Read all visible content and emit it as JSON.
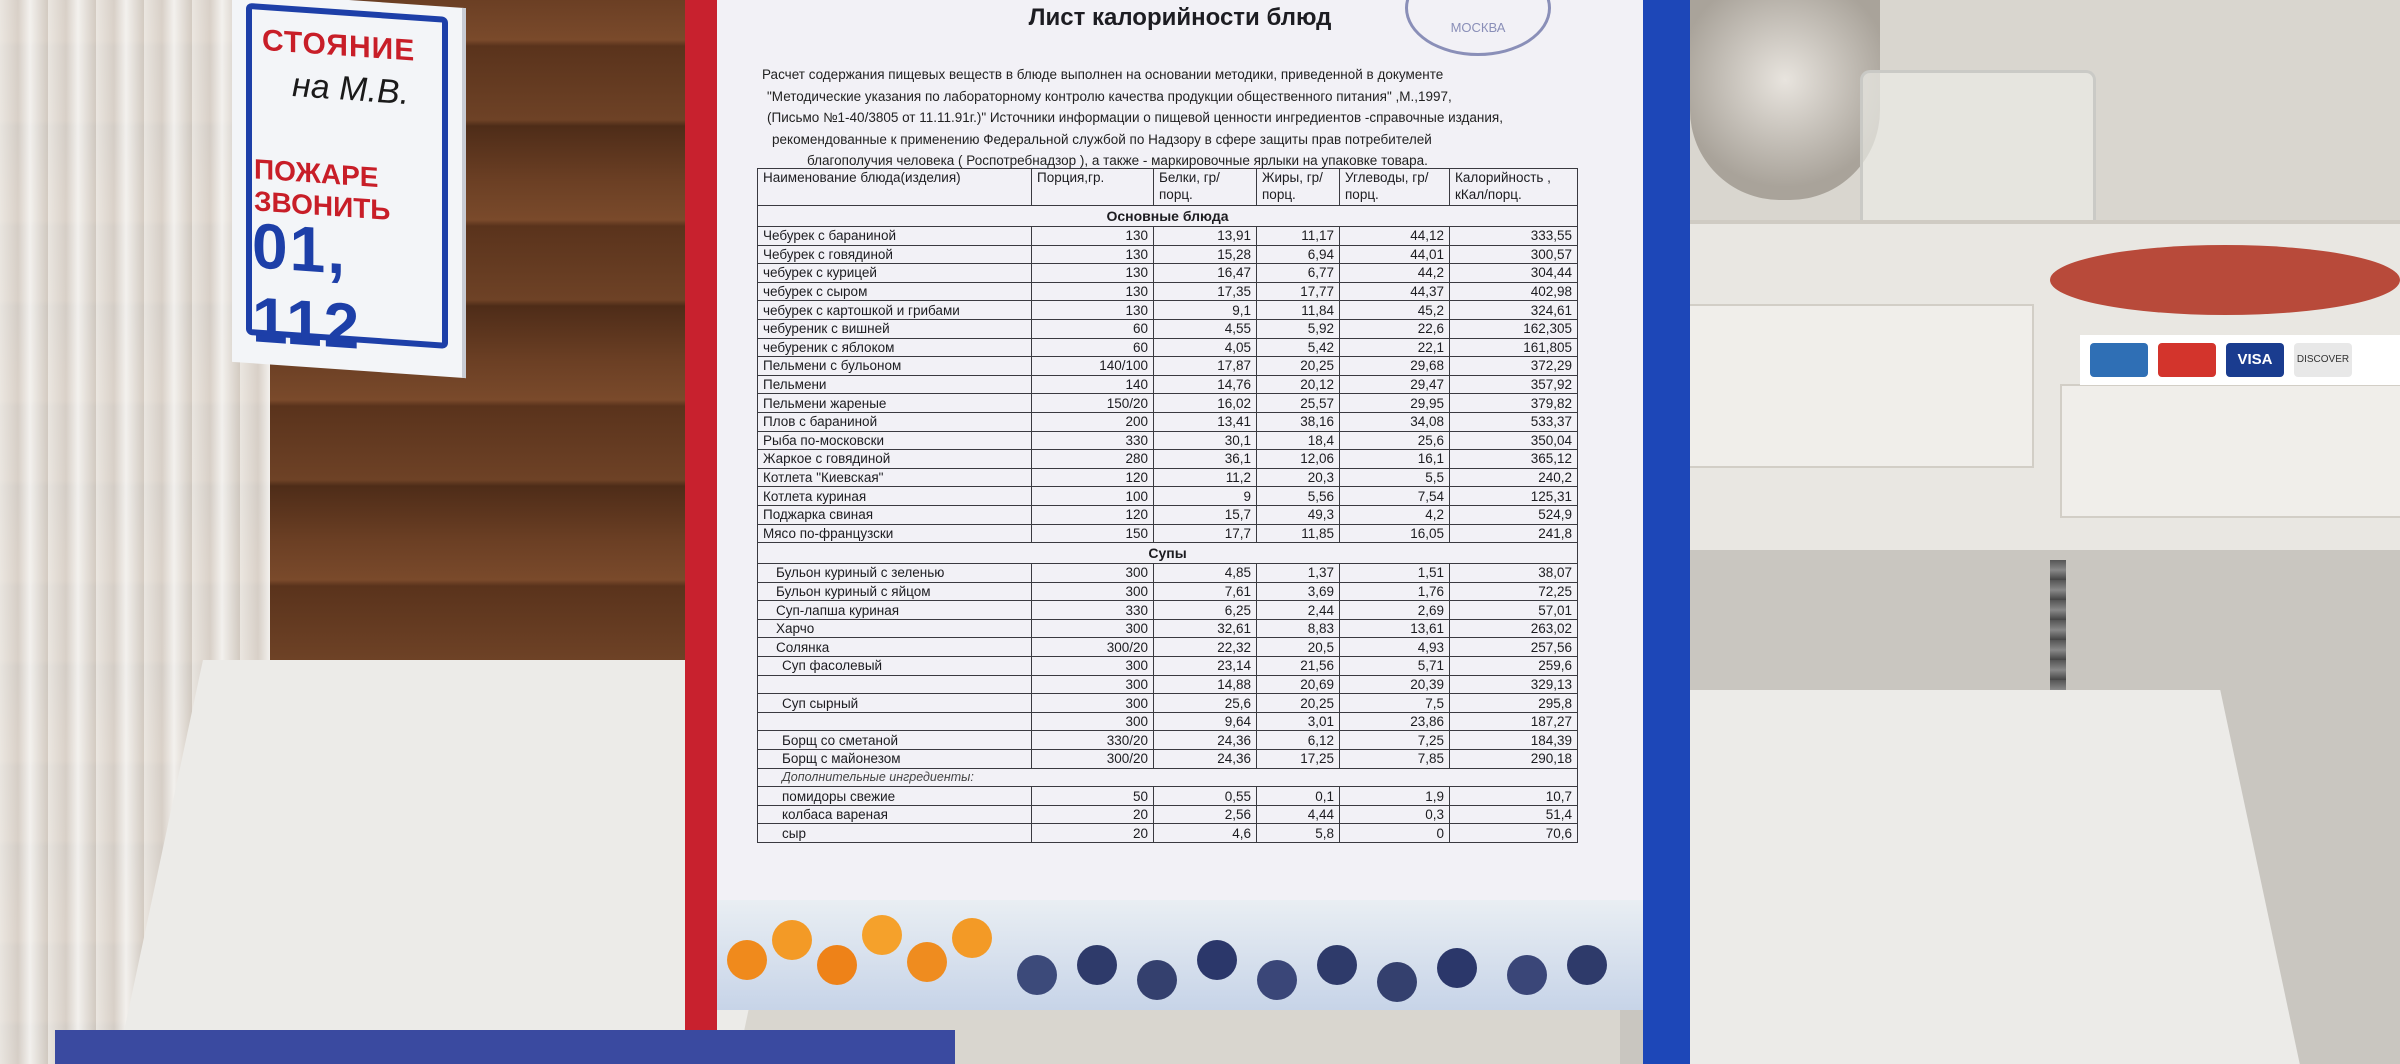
{
  "background": {
    "sign_lines": [
      "СТОЯНИЕ",
      "на М.В.",
      "ПОЖАРЕ ЗВОНИТЬ",
      "01, 112"
    ],
    "card_brands": [
      "VISA",
      "DISCOVER"
    ]
  },
  "document": {
    "title": "Лист калорийности блюд",
    "stamp_text": "МОСКВА",
    "intro_lines": [
      "Расчет содержания пищевых веществ в блюде выполнен на основании методики, приведенной в документе",
      "\"Методические указания по лабораторному контролю качества продукции общественного питания\" ,М.,1997,",
      "(Письмо №1-40/3805 от 11.11.91г.)\" Источники информации о пищевой ценности ингредиентов -справочные издания,",
      "рекомендованные к применению Федеральной службой по Надзору в сфере защиты прав потребителей",
      "благополучия человека ( Роспотребнадзор ), а также - маркировочные ярлыки на упаковке товара."
    ],
    "headers": [
      "Наименование блюда(изделия)",
      "Порция,гр.",
      "Белки, гр/порц.",
      "Жиры, гр/порц.",
      "Углеводы, гр/порц.",
      "Калорийность , кКал/порц."
    ],
    "sections": [
      {
        "title": "Основные блюда",
        "rows": [
          [
            "Чебурек с бараниной",
            "130",
            "13,91",
            "11,17",
            "44,12",
            "333,55"
          ],
          [
            "Чебурек с говядиной",
            "130",
            "15,28",
            "6,94",
            "44,01",
            "300,57"
          ],
          [
            "чебурек с курицей",
            "130",
            "16,47",
            "6,77",
            "44,2",
            "304,44"
          ],
          [
            "чебурек с сыром",
            "130",
            "17,35",
            "17,77",
            "44,37",
            "402,98"
          ],
          [
            "чебурек с картошкой и грибами",
            "130",
            "9,1",
            "11,84",
            "45,2",
            "324,61"
          ],
          [
            "чебуреник с вишней",
            "60",
            "4,55",
            "5,92",
            "22,6",
            "162,305"
          ],
          [
            "чебуреник с яблоком",
            "60",
            "4,05",
            "5,42",
            "22,1",
            "161,805"
          ],
          [
            "Пельмени с бульоном",
            "140/100",
            "17,87",
            "20,25",
            "29,68",
            "372,29"
          ],
          [
            "Пельмени",
            "140",
            "14,76",
            "20,12",
            "29,47",
            "357,92"
          ],
          [
            "Пельмени жареные",
            "150/20",
            "16,02",
            "25,57",
            "29,95",
            "379,82"
          ],
          [
            "Плов с бараниной",
            "200",
            "13,41",
            "38,16",
            "34,08",
            "533,37"
          ],
          [
            "Рыба по-московски",
            "330",
            "30,1",
            "18,4",
            "25,6",
            "350,04"
          ],
          [
            "Жаркое с говядиной",
            "280",
            "36,1",
            "12,06",
            "16,1",
            "365,12"
          ],
          [
            "Котлета \"Киевская\"",
            "120",
            "11,2",
            "20,3",
            "5,5",
            "240,2"
          ],
          [
            "Котлета куриная",
            "100",
            "9",
            "5,56",
            "7,54",
            "125,31"
          ],
          [
            "Поджарка свиная",
            "120",
            "15,7",
            "49,3",
            "4,2",
            "524,9"
          ],
          [
            "Мясо по-французски",
            "150",
            "17,7",
            "11,85",
            "16,05",
            "241,8"
          ]
        ]
      },
      {
        "title": "Супы",
        "rows": [
          [
            "Бульон куриный с зеленью",
            "300",
            "4,85",
            "1,37",
            "1,51",
            "38,07"
          ],
          [
            "Бульон куриный с яйцом",
            "300",
            "7,61",
            "3,69",
            "1,76",
            "72,25"
          ],
          [
            "Суп-лапша куриная",
            "330",
            "6,25",
            "2,44",
            "2,69",
            "57,01"
          ],
          [
            "Харчо",
            "300",
            "32,61",
            "8,83",
            "13,61",
            "263,02"
          ],
          [
            "Солянка",
            "300/20",
            "22,32",
            "20,5",
            "4,93",
            "257,56"
          ],
          [
            "Суп фасолевый",
            "300",
            "23,14",
            "21,56",
            "5,71",
            "259,6"
          ],
          [
            "",
            "300",
            "14,88",
            "20,69",
            "20,39",
            "329,13"
          ],
          [
            "Суп сырный",
            "300",
            "25,6",
            "20,25",
            "7,5",
            "295,8"
          ],
          [
            "",
            "300",
            "9,64",
            "3,01",
            "23,86",
            "187,27"
          ],
          [
            "Борщ со сметаной",
            "330/20",
            "24,36",
            "6,12",
            "7,25",
            "184,39"
          ],
          [
            "Борщ с майонезом",
            "300/20",
            "24,36",
            "17,25",
            "7,85",
            "290,18"
          ]
        ]
      }
    ],
    "extras_title": "Дополнительные ингредиенты:",
    "extras": [
      [
        "помидоры свежие",
        "50",
        "0,55",
        "0,1",
        "1,9",
        "10,7"
      ],
      [
        "колбаса вареная",
        "20",
        "2,56",
        "4,44",
        "0,3",
        "51,4"
      ],
      [
        "сыр",
        "20",
        "4,6",
        "5,8",
        "0",
        "70,6"
      ]
    ]
  }
}
